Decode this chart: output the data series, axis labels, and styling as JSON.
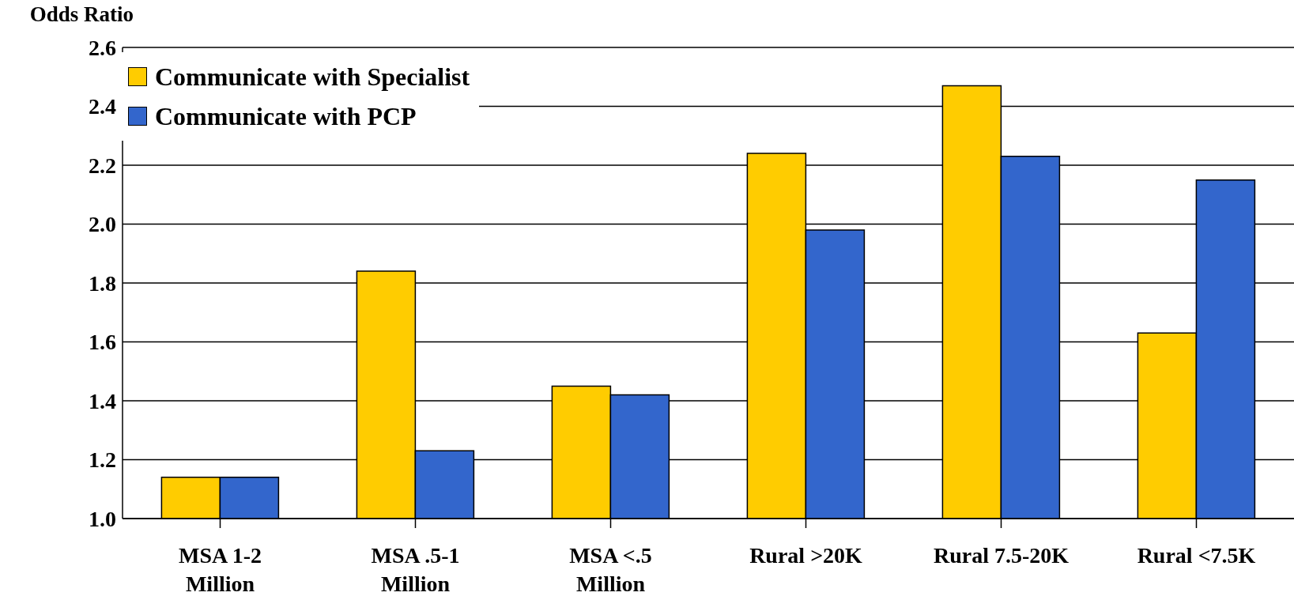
{
  "chart_data": {
    "type": "bar",
    "ylabel": "Odds Ratio",
    "categories": [
      "MSA 1-2\nMillion",
      "MSA .5-1\nMillion",
      "MSA <.5\nMillion",
      "Rural >20K",
      "Rural 7.5-20K",
      "Rural <7.5K"
    ],
    "series": [
      {
        "name": "Communicate with Specialist",
        "color": "#ffcc00",
        "values": [
          1.14,
          1.84,
          1.45,
          2.24,
          2.47,
          1.63
        ]
      },
      {
        "name": "Communicate with PCP",
        "color": "#3366cc",
        "values": [
          1.14,
          1.23,
          1.42,
          1.98,
          2.23,
          2.15
        ]
      }
    ],
    "ylim": [
      1.0,
      2.6
    ],
    "yticks": [
      {
        "value": 1.0,
        "label": "1.0"
      },
      {
        "value": 1.2,
        "label": "1.2"
      },
      {
        "value": 1.4,
        "label": "1.4"
      },
      {
        "value": 1.6,
        "label": "1.6"
      },
      {
        "value": 1.8,
        "label": "1.8"
      },
      {
        "value": 2.0,
        "label": "2.0"
      },
      {
        "value": 2.2,
        "label": "2.2"
      },
      {
        "value": 2.4,
        "label": "2.4"
      },
      {
        "value": 2.6,
        "label": "2.6"
      }
    ],
    "grid": "y",
    "legend": "top left"
  }
}
